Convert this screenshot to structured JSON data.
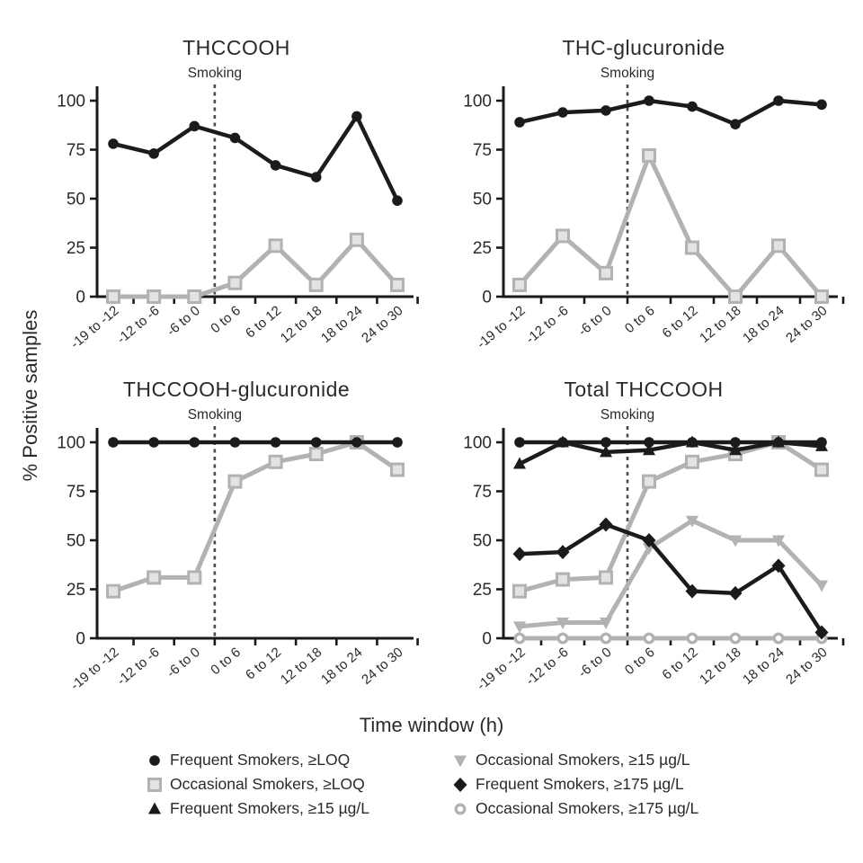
{
  "figure": {
    "ylabel": "% Positive samples",
    "xlabel": "Time window (h)",
    "colors": {
      "black": "#1b1b1b",
      "gray": "#b2b2b2",
      "axis": "#1a1a1a",
      "dashed_line": "#4a4a4a"
    }
  },
  "chart_data": [
    {
      "type": "line",
      "title": "THCCOOH",
      "annotation": "Smoking",
      "annotation_x": "boundary between -6 to 0 and 0 to 6",
      "categories": [
        "-19 to -12",
        "-12 to -6",
        "-6 to 0",
        "0 to 6",
        "6 to 12",
        "12 to 18",
        "18 to 24",
        "24 to 30"
      ],
      "ylim": [
        0,
        100
      ],
      "yticks": [
        0,
        25,
        50,
        75,
        100
      ],
      "grid": "off",
      "series": [
        {
          "name": "Occasional Smokers, ≥LOQ",
          "marker": "square-open",
          "color": "gray",
          "values": [
            0,
            0,
            0,
            7,
            26,
            6,
            29,
            6
          ]
        },
        {
          "name": "Frequent Smokers, ≥LOQ",
          "marker": "circle-filled",
          "color": "black",
          "values": [
            78,
            73,
            87,
            81,
            67,
            61,
            92,
            49
          ]
        }
      ]
    },
    {
      "type": "line",
      "title": "THC-glucuronide",
      "annotation": "Smoking",
      "annotation_x": "boundary between -6 to 0 and 0 to 6",
      "categories": [
        "-19 to -12",
        "-12 to -6",
        "-6 to 0",
        "0 to 6",
        "6 to 12",
        "12 to 18",
        "18 to 24",
        "24 to 30"
      ],
      "ylim": [
        0,
        100
      ],
      "yticks": [
        0,
        25,
        50,
        75,
        100
      ],
      "grid": "off",
      "series": [
        {
          "name": "Occasional Smokers, ≥LOQ",
          "marker": "square-open",
          "color": "gray",
          "values": [
            6,
            31,
            12,
            72,
            25,
            0,
            26,
            0
          ]
        },
        {
          "name": "Frequent Smokers, ≥LOQ",
          "marker": "circle-filled",
          "color": "black",
          "values": [
            89,
            94,
            95,
            100,
            97,
            88,
            100,
            98
          ]
        }
      ]
    },
    {
      "type": "line",
      "title": "THCCOOH-glucuronide",
      "annotation": "Smoking",
      "annotation_x": "boundary between -6 to 0 and 0 to 6",
      "categories": [
        "-19 to -12",
        "-12 to -6",
        "-6 to 0",
        "0 to 6",
        "6 to 12",
        "12 to 18",
        "18 to 24",
        "24 to 30"
      ],
      "ylim": [
        0,
        100
      ],
      "yticks": [
        0,
        25,
        50,
        75,
        100
      ],
      "grid": "off",
      "series": [
        {
          "name": "Occasional Smokers, ≥LOQ",
          "marker": "square-open",
          "color": "gray",
          "values": [
            24,
            31,
            31,
            80,
            90,
            94,
            100,
            86
          ]
        },
        {
          "name": "Frequent Smokers, ≥LOQ",
          "marker": "circle-filled",
          "color": "black",
          "values": [
            100,
            100,
            100,
            100,
            100,
            100,
            100,
            100
          ]
        }
      ]
    },
    {
      "type": "line",
      "title": "Total THCCOOH",
      "annotation": "Smoking",
      "annotation_x": "boundary between -6 to 0 and 0 to 6",
      "categories": [
        "-19 to -12",
        "-12 to -6",
        "-6 to 0",
        "0 to 6",
        "6 to 12",
        "12 to 18",
        "18 to 24",
        "24 to 30"
      ],
      "ylim": [
        0,
        100
      ],
      "yticks": [
        0,
        25,
        50,
        75,
        100
      ],
      "grid": "off",
      "series": [
        {
          "name": "Occasional Smokers, ≥175 µg/L",
          "marker": "circle-open",
          "color": "gray",
          "values": [
            0,
            0,
            0,
            0,
            0,
            0,
            0,
            0
          ]
        },
        {
          "name": "Occasional Smokers, ≥15 µg/L",
          "marker": "triangle-down-filled",
          "color": "gray",
          "values": [
            6,
            8,
            8,
            46,
            60,
            50,
            50,
            27
          ]
        },
        {
          "name": "Occasional Smokers, ≥LOQ",
          "marker": "square-open",
          "color": "gray",
          "values": [
            24,
            30,
            31,
            80,
            90,
            94,
            100,
            86
          ]
        },
        {
          "name": "Frequent Smokers, ≥175 µg/L",
          "marker": "diamond-filled",
          "color": "black",
          "values": [
            43,
            44,
            58,
            50,
            24,
            23,
            37,
            3
          ]
        },
        {
          "name": "Frequent Smokers, ≥15 µg/L",
          "marker": "triangle-up-filled",
          "color": "black",
          "values": [
            89,
            100,
            95,
            96,
            100,
            96,
            100,
            98
          ]
        },
        {
          "name": "Frequent Smokers, ≥LOQ",
          "marker": "circle-filled",
          "color": "black",
          "values": [
            100,
            100,
            100,
            100,
            100,
            100,
            100,
            100
          ]
        }
      ]
    }
  ],
  "legend": {
    "position": "bottom",
    "columns": [
      {
        "items": [
          {
            "marker": "circle-filled",
            "color": "black",
            "label": "Frequent Smokers, ≥LOQ"
          },
          {
            "marker": "square-open",
            "color": "gray",
            "label": "Occasional Smokers, ≥LOQ"
          },
          {
            "marker": "triangle-up-filled",
            "color": "black",
            "label": "Frequent Smokers, ≥15 µg/L"
          }
        ]
      },
      {
        "items": [
          {
            "marker": "triangle-down-filled",
            "color": "gray",
            "label": "Occasional Smokers, ≥15 µg/L"
          },
          {
            "marker": "diamond-filled",
            "color": "black",
            "label": "Frequent Smokers, ≥175 µg/L"
          },
          {
            "marker": "circle-open",
            "color": "gray",
            "label": "Occasional Smokers, ≥175 µg/L"
          }
        ]
      }
    ]
  }
}
